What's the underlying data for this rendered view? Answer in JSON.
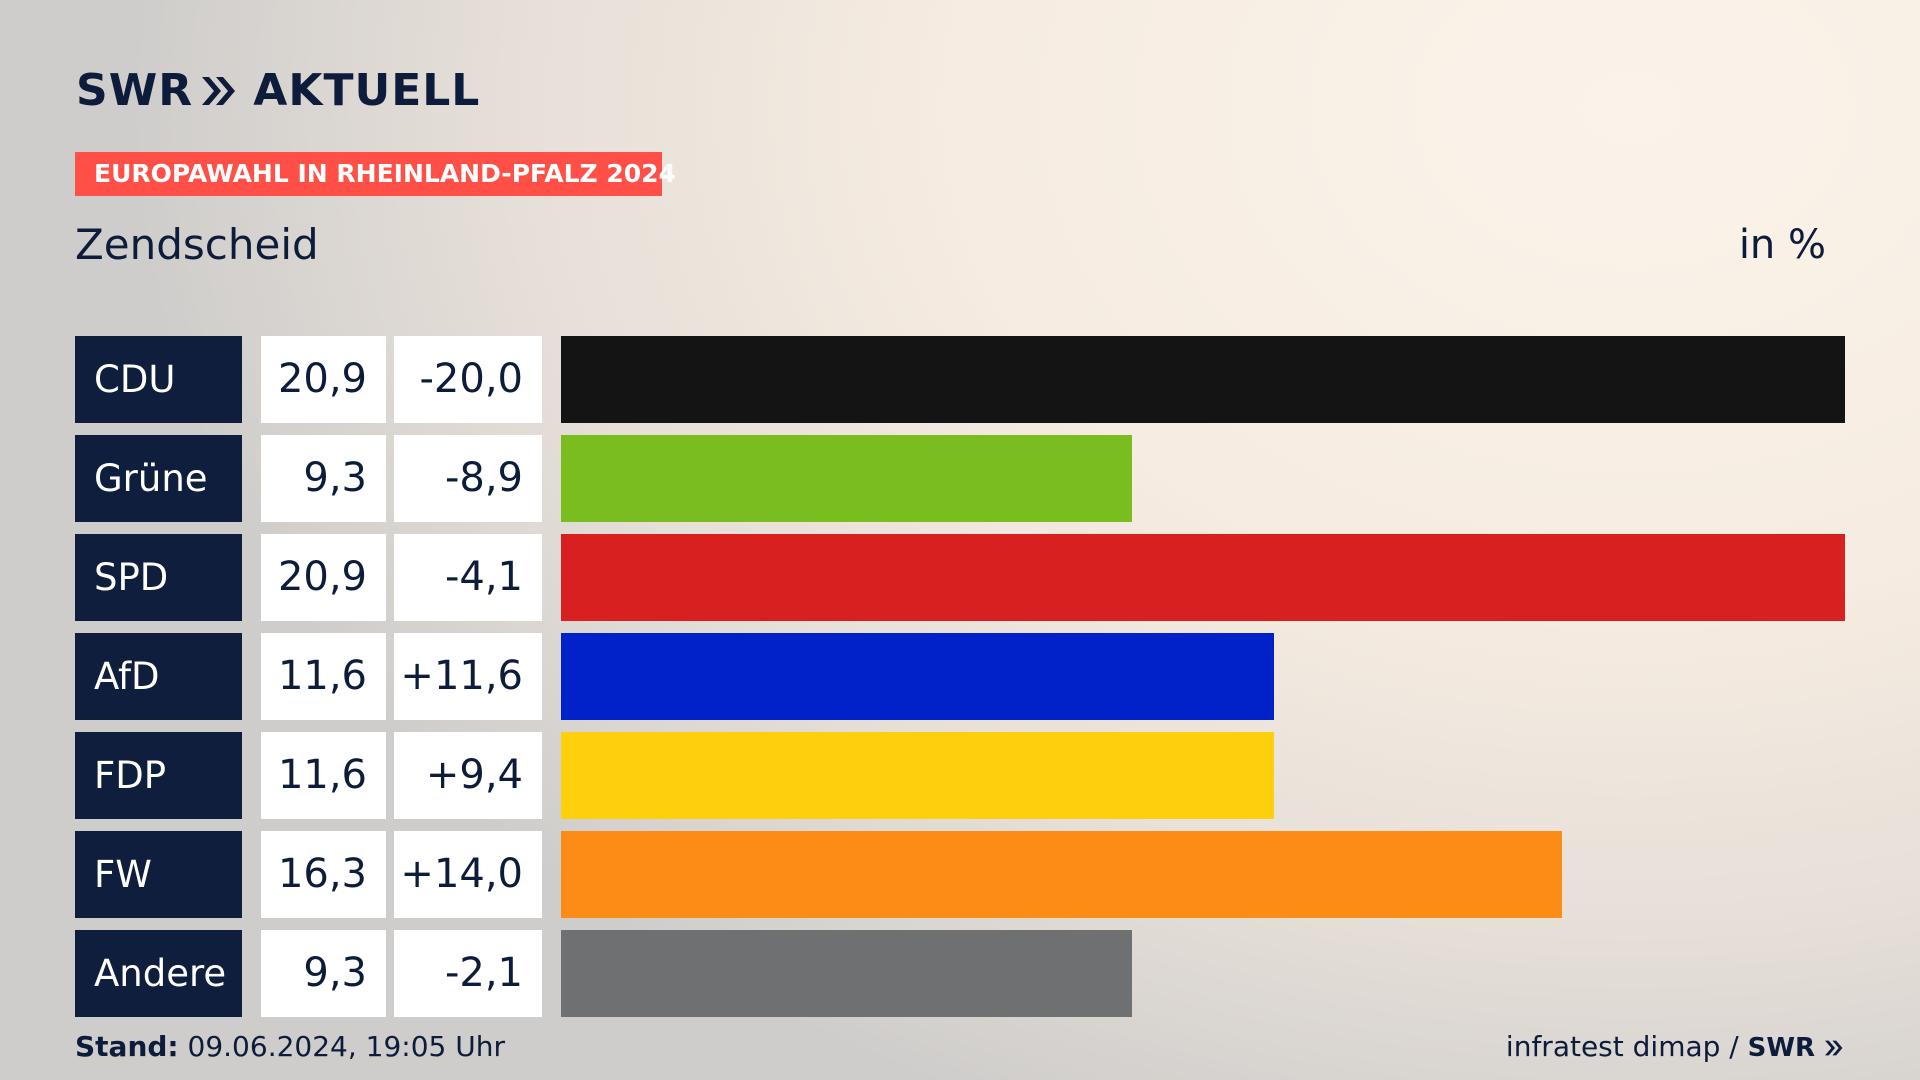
{
  "brand": {
    "swr": "SWR",
    "aktuell": "AKTUELL"
  },
  "banner": "EUROPAWAHL IN RHEINLAND-PFALZ 2024",
  "subtitle": "Zendscheid",
  "unit": "in %",
  "footer": {
    "stand_label": "Stand:",
    "stand_value": "09.06.2024, 19:05 Uhr",
    "source": "infratest dimap /",
    "source_brand": "SWR"
  },
  "chart_data": {
    "type": "bar",
    "title": "Zendscheid",
    "unit": "in %",
    "categories": [
      "CDU",
      "Grüne",
      "SPD",
      "AfD",
      "FDP",
      "FW",
      "Andere"
    ],
    "values": [
      20.9,
      9.3,
      20.9,
      11.6,
      11.6,
      16.3,
      9.3
    ],
    "value_labels": [
      "20,9",
      "9,3",
      "20,9",
      "11,6",
      "11,6",
      "16,3",
      "9,3"
    ],
    "diff_labels": [
      "-20,0",
      "-8,9",
      "-4,1",
      "+11,6",
      "+9,4",
      "+14,0",
      "-2,1"
    ],
    "colors": [
      "#141414",
      "#7abd1e",
      "#d7201f",
      "#0022c8",
      "#fecf0c",
      "#fd8c17",
      "#6f7071"
    ],
    "xlim": [
      0,
      20.9
    ]
  }
}
